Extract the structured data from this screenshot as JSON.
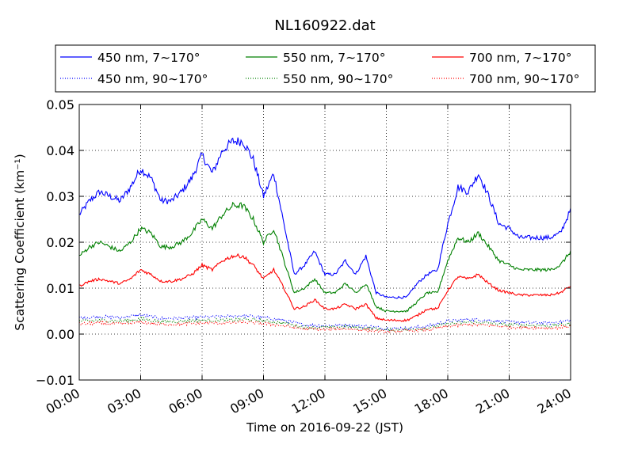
{
  "chart_data": {
    "type": "line",
    "title": "NL160922.dat",
    "xlabel": "Time on 2016-09-22 (JST)",
    "ylabel": "Scattering Coefficient (km⁻¹)",
    "x_unit": "hour",
    "xlim": [
      0,
      24
    ],
    "ylim": [
      -0.01,
      0.05
    ],
    "x_tick_labels": [
      "00:00",
      "03:00",
      "06:00",
      "09:00",
      "12:00",
      "15:00",
      "18:00",
      "21:00",
      "24:00"
    ],
    "y_tick_labels": [
      "−0.01",
      "0.00",
      "0.01",
      "0.02",
      "0.03",
      "0.04",
      "0.05"
    ],
    "grid": true,
    "grid_style": "dotted",
    "legend_position": "top",
    "series": [
      {
        "name": "450 nm, 7∼170°",
        "color": "#0000ff",
        "style": "solid",
        "x": [
          0,
          0.5,
          1,
          1.5,
          2,
          2.5,
          3,
          3.5,
          4,
          4.5,
          5,
          5.5,
          6,
          6.5,
          7,
          7.5,
          8,
          8.5,
          9,
          9.5,
          10,
          10.5,
          11,
          11.5,
          12,
          12.5,
          13,
          13.5,
          14,
          14.5,
          15,
          15.5,
          16,
          16.5,
          17,
          17.5,
          18,
          18.5,
          19,
          19.5,
          20,
          20.5,
          21,
          21.5,
          22,
          22.5,
          23,
          23.5,
          24
        ],
        "y": [
          0.026,
          0.029,
          0.031,
          0.03,
          0.029,
          0.032,
          0.036,
          0.034,
          0.029,
          0.029,
          0.031,
          0.034,
          0.039,
          0.035,
          0.04,
          0.042,
          0.042,
          0.038,
          0.03,
          0.035,
          0.024,
          0.013,
          0.015,
          0.018,
          0.013,
          0.013,
          0.016,
          0.013,
          0.017,
          0.009,
          0.008,
          0.008,
          0.008,
          0.011,
          0.013,
          0.014,
          0.024,
          0.032,
          0.031,
          0.035,
          0.03,
          0.024,
          0.023,
          0.021,
          0.021,
          0.021,
          0.021,
          0.022,
          0.027
        ]
      },
      {
        "name": "450 nm, 90∼170°",
        "color": "#0000ff",
        "style": "dotted",
        "x": [
          0,
          1,
          2,
          3,
          4,
          5,
          6,
          7,
          8,
          9,
          10,
          11,
          12,
          13,
          14,
          15,
          16,
          17,
          18,
          19,
          20,
          21,
          22,
          23,
          24
        ],
        "y": [
          0.0035,
          0.0038,
          0.0036,
          0.0042,
          0.0034,
          0.0035,
          0.0037,
          0.0038,
          0.004,
          0.0036,
          0.003,
          0.002,
          0.0018,
          0.002,
          0.0017,
          0.0012,
          0.0013,
          0.0017,
          0.0028,
          0.0032,
          0.003,
          0.0026,
          0.0025,
          0.0024,
          0.003
        ]
      },
      {
        "name": "550 nm, 7∼170°",
        "color": "#008000",
        "style": "solid",
        "x": [
          0,
          0.5,
          1,
          1.5,
          2,
          2.5,
          3,
          3.5,
          4,
          4.5,
          5,
          5.5,
          6,
          6.5,
          7,
          7.5,
          8,
          8.5,
          9,
          9.5,
          10,
          10.5,
          11,
          11.5,
          12,
          12.5,
          13,
          13.5,
          14,
          14.5,
          15,
          15.5,
          16,
          16.5,
          17,
          17.5,
          18,
          18.5,
          19,
          19.5,
          20,
          20.5,
          21,
          21.5,
          22,
          22.5,
          23,
          23.5,
          24
        ],
        "y": [
          0.017,
          0.019,
          0.02,
          0.019,
          0.018,
          0.02,
          0.023,
          0.022,
          0.019,
          0.019,
          0.02,
          0.022,
          0.025,
          0.023,
          0.026,
          0.028,
          0.028,
          0.025,
          0.02,
          0.023,
          0.016,
          0.009,
          0.01,
          0.012,
          0.009,
          0.009,
          0.011,
          0.009,
          0.011,
          0.006,
          0.005,
          0.005,
          0.005,
          0.007,
          0.009,
          0.009,
          0.016,
          0.021,
          0.02,
          0.022,
          0.019,
          0.016,
          0.015,
          0.014,
          0.014,
          0.014,
          0.014,
          0.015,
          0.018
        ]
      },
      {
        "name": "550 nm, 90∼170°",
        "color": "#008000",
        "style": "dotted",
        "x": [
          0,
          1,
          2,
          3,
          4,
          5,
          6,
          7,
          8,
          9,
          10,
          11,
          12,
          13,
          14,
          15,
          16,
          17,
          18,
          19,
          20,
          21,
          22,
          23,
          24
        ],
        "y": [
          0.0028,
          0.003,
          0.0028,
          0.0033,
          0.0027,
          0.0028,
          0.003,
          0.003,
          0.0032,
          0.0029,
          0.0024,
          0.0015,
          0.0014,
          0.0016,
          0.0013,
          0.0009,
          0.001,
          0.0013,
          0.0022,
          0.0026,
          0.0024,
          0.002,
          0.0019,
          0.0018,
          0.0023
        ]
      },
      {
        "name": "700 nm, 7∼170°",
        "color": "#ff0000",
        "style": "solid",
        "x": [
          0,
          0.5,
          1,
          1.5,
          2,
          2.5,
          3,
          3.5,
          4,
          4.5,
          5,
          5.5,
          6,
          6.5,
          7,
          7.5,
          8,
          8.5,
          9,
          9.5,
          10,
          10.5,
          11,
          11.5,
          12,
          12.5,
          13,
          13.5,
          14,
          14.5,
          15,
          15.5,
          16,
          16.5,
          17,
          17.5,
          18,
          18.5,
          19,
          19.5,
          20,
          20.5,
          21,
          21.5,
          22,
          22.5,
          23,
          23.5,
          24
        ],
        "y": [
          0.0105,
          0.0115,
          0.012,
          0.0115,
          0.011,
          0.012,
          0.014,
          0.013,
          0.0115,
          0.0115,
          0.012,
          0.013,
          0.015,
          0.014,
          0.016,
          0.017,
          0.017,
          0.015,
          0.012,
          0.014,
          0.01,
          0.0055,
          0.006,
          0.0075,
          0.0055,
          0.0055,
          0.0065,
          0.0055,
          0.0065,
          0.0035,
          0.003,
          0.003,
          0.003,
          0.004,
          0.0055,
          0.0055,
          0.0095,
          0.0125,
          0.012,
          0.013,
          0.011,
          0.0095,
          0.009,
          0.0085,
          0.0085,
          0.0085,
          0.0085,
          0.009,
          0.0105
        ]
      },
      {
        "name": "700 nm, 90∼170°",
        "color": "#ff0000",
        "style": "dotted",
        "x": [
          0,
          1,
          2,
          3,
          4,
          5,
          6,
          7,
          8,
          9,
          10,
          11,
          12,
          13,
          14,
          15,
          16,
          17,
          18,
          19,
          20,
          21,
          22,
          23,
          24
        ],
        "y": [
          0.0022,
          0.0024,
          0.0022,
          0.0026,
          0.0021,
          0.0022,
          0.0024,
          0.0024,
          0.0026,
          0.0023,
          0.0018,
          0.0011,
          0.001,
          0.0012,
          0.0009,
          0.0005,
          0.0007,
          0.0009,
          0.0017,
          0.0021,
          0.0019,
          0.0015,
          0.0014,
          0.0013,
          0.0017
        ]
      }
    ]
  }
}
